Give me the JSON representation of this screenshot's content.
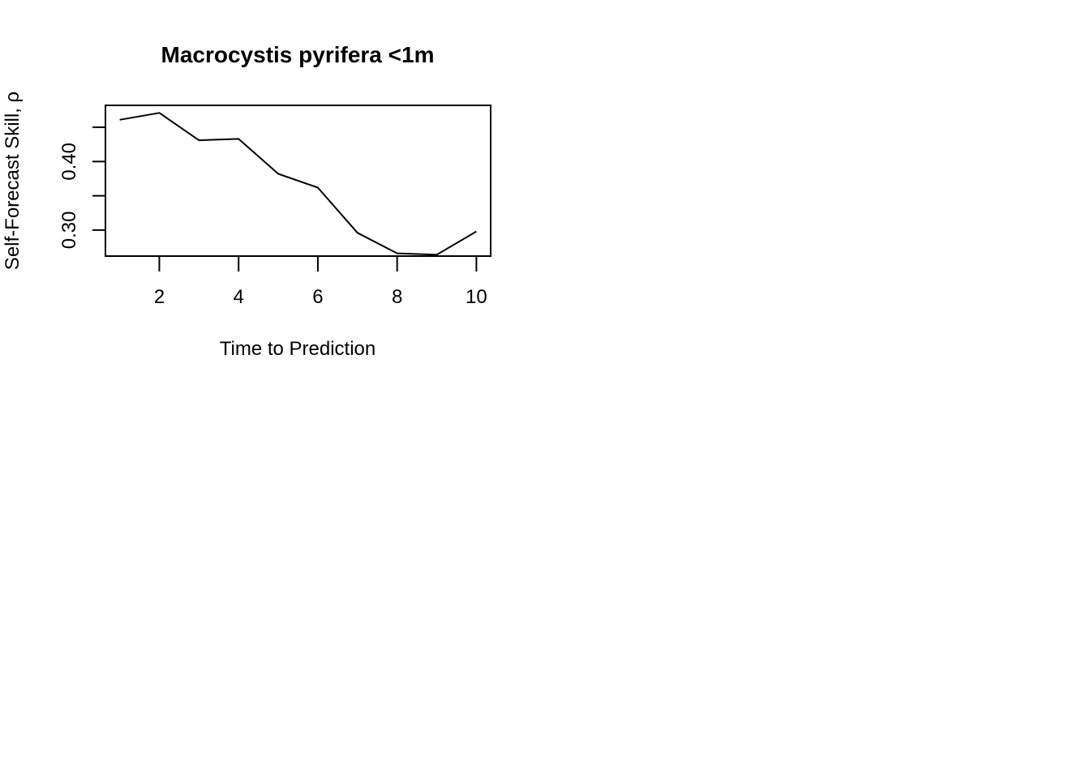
{
  "chart_data": {
    "type": "line",
    "title": "Macrocystis pyrifera <1m",
    "xlabel": "Time to Prediction",
    "ylabel": "Self-Forecast Skill, ρ",
    "x": [
      1,
      2,
      3,
      4,
      5,
      6,
      7,
      8,
      9,
      10
    ],
    "series": [
      {
        "values": [
          0.461,
          0.471,
          0.431,
          0.433,
          0.382,
          0.362,
          0.296,
          0.266,
          0.264,
          0.298
        ]
      }
    ],
    "xlim": [
      0.64,
      10.36
    ],
    "ylim": [
      0.262,
      0.482
    ],
    "xticks": [
      2,
      4,
      6,
      8,
      10
    ],
    "xtick_labels": [
      "2",
      "4",
      "6",
      "8",
      "10"
    ],
    "yticks": [
      0.3,
      0.35,
      0.4,
      0.45
    ],
    "ytick_labels": [
      "0.30",
      "",
      "0.40",
      ""
    ],
    "grid": false,
    "legend": "none"
  }
}
